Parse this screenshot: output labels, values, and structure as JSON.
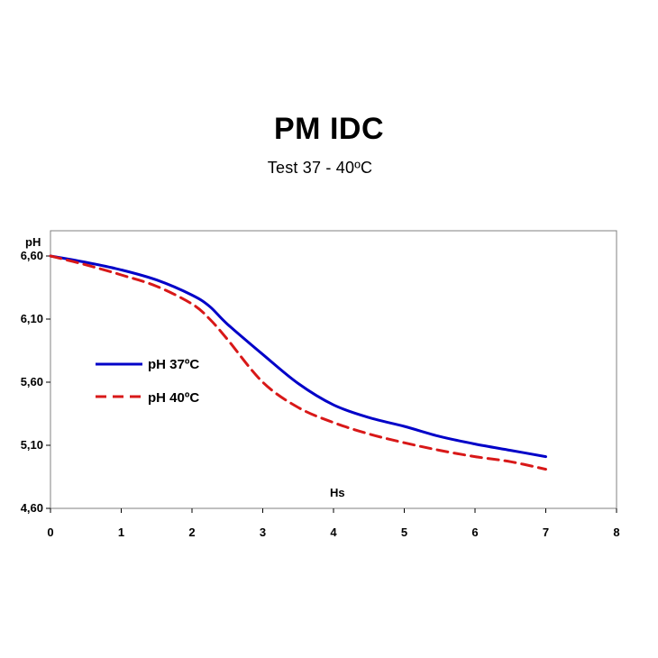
{
  "chart_data": {
    "type": "line",
    "title": "PM IDC",
    "subtitle": "Test  37  - 40ºC",
    "xlabel": "Hs",
    "ylabel": "pH",
    "xlim": [
      0,
      8
    ],
    "ylim": [
      4.6,
      6.6
    ],
    "xticks": [
      "0",
      "1",
      "2",
      "3",
      "4",
      "5",
      "6",
      "7",
      "8"
    ],
    "yticks": [
      "4,60",
      "5,10",
      "5,60",
      "6,10",
      "6,60"
    ],
    "grid": false,
    "legend_position": "left-middle",
    "series": [
      {
        "name": "pH 37ºC",
        "color": "#0000c8",
        "style": "solid",
        "x": [
          0,
          0.5,
          1,
          1.5,
          2,
          2.25,
          2.5,
          3,
          3.5,
          4,
          4.5,
          5,
          5.5,
          6,
          6.5,
          7
        ],
        "y": [
          6.6,
          6.55,
          6.49,
          6.41,
          6.29,
          6.2,
          6.06,
          5.82,
          5.59,
          5.42,
          5.32,
          5.25,
          5.17,
          5.11,
          5.06,
          5.01
        ]
      },
      {
        "name": "pH 40ºC",
        "color": "#d81818",
        "style": "dashed",
        "x": [
          0,
          0.5,
          1,
          1.5,
          2,
          2.25,
          2.5,
          3,
          3.5,
          4,
          4.5,
          5,
          5.5,
          6,
          6.5,
          7
        ],
        "y": [
          6.6,
          6.53,
          6.45,
          6.36,
          6.22,
          6.1,
          5.94,
          5.6,
          5.4,
          5.28,
          5.19,
          5.12,
          5.06,
          5.01,
          4.97,
          4.91
        ]
      }
    ]
  }
}
